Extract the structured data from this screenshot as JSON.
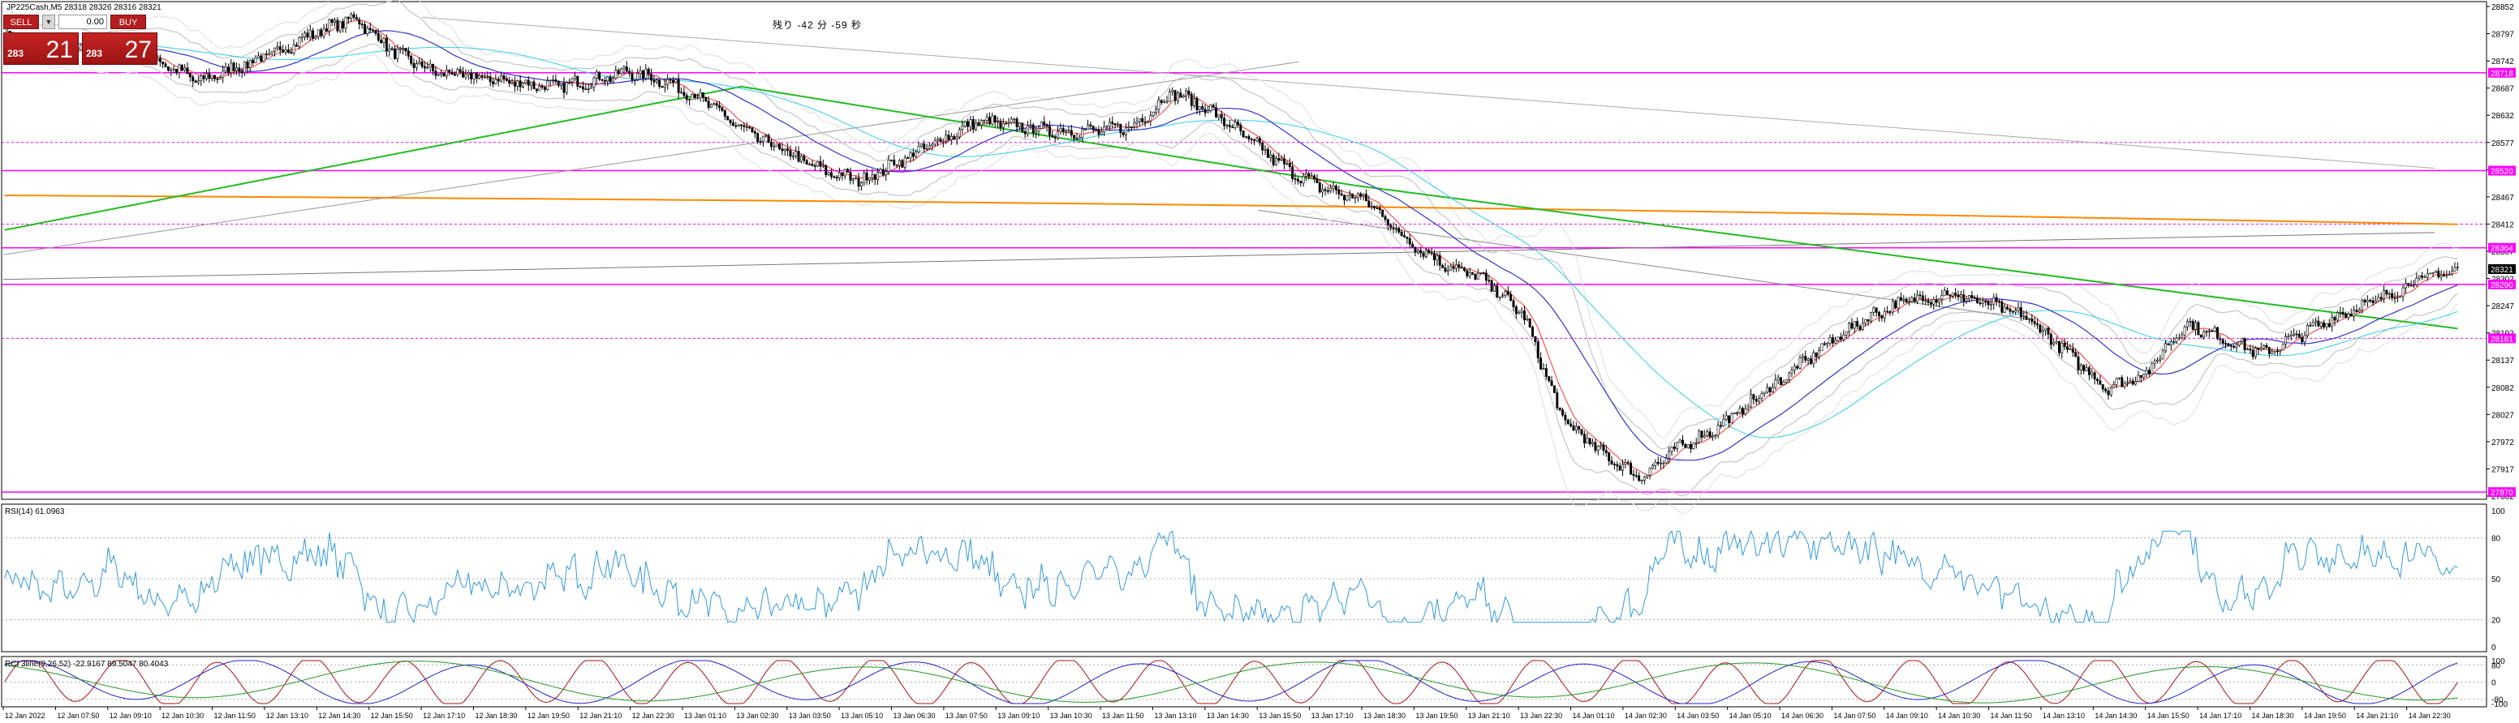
{
  "window": {
    "symbol_info": "JP225Cash,M5  28318 28326 28316 28321",
    "countdown": "残り -42 分 -59 秒"
  },
  "trade_panel": {
    "sell_label": "SELL",
    "buy_label": "BUY",
    "volume": "0.00",
    "sell_price_prefix": "283",
    "sell_price_big": "21",
    "buy_price_prefix": "283",
    "buy_price_big": "27"
  },
  "indicators": {
    "rsi_label": "RSI(14) 61.0963",
    "rci_label": "RCI 3line(9,26,52) -22.9167 89.5047 80.4043"
  },
  "price_axis": {
    "labels": [
      "28852",
      "28797",
      "28742",
      "28687",
      "28632",
      "28577",
      "28522",
      "28467",
      "28412",
      "28357",
      "28302",
      "28247",
      "28192",
      "28137",
      "28082",
      "28027",
      "27972",
      "27917",
      "27862"
    ],
    "range": [
      27862,
      28852
    ]
  },
  "price_tags": [
    {
      "value": "28718",
      "color": "#ff00ff"
    },
    {
      "value": "28520",
      "color": "#ff00ff"
    },
    {
      "value": "28364",
      "color": "#ff00ff"
    },
    {
      "value": "28321",
      "color": "#000000"
    },
    {
      "value": "28290",
      "color": "#ff00ff"
    },
    {
      "value": "28181",
      "color": "#ff00ff"
    },
    {
      "value": "27870",
      "color": "#ff00ff"
    }
  ],
  "rsi_axis": {
    "labels": [
      "100",
      "80",
      "50",
      "20",
      "0"
    ]
  },
  "rci_axis": {
    "labels": [
      "100",
      "80",
      "0",
      "-80",
      "-100"
    ]
  },
  "time_axis": {
    "labels": [
      "12 Jan 2022",
      "12 Jan 07:50",
      "12 Jan 09:10",
      "12 Jan 10:30",
      "12 Jan 11:50",
      "12 Jan 13:10",
      "12 Jan 14:30",
      "12 Jan 15:50",
      "12 Jan 17:10",
      "12 Jan 18:30",
      "12 Jan 19:50",
      "12 Jan 21:10",
      "12 Jan 22:30",
      "13 Jan 01:10",
      "13 Jan 02:30",
      "13 Jan 03:50",
      "13 Jan 05:10",
      "13 Jan 06:30",
      "13 Jan 07:50",
      "13 Jan 09:10",
      "13 Jan 10:30",
      "13 Jan 11:50",
      "13 Jan 13:10",
      "13 Jan 14:30",
      "13 Jan 15:50",
      "13 Jan 17:10",
      "13 Jan 18:30",
      "13 Jan 19:50",
      "13 Jan 21:10",
      "13 Jan 22:30",
      "14 Jan 01:10",
      "14 Jan 02:30",
      "14 Jan 03:50",
      "14 Jan 05:10",
      "14 Jan 06:30",
      "14 Jan 07:50",
      "14 Jan 09:10",
      "14 Jan 10:30",
      "14 Jan 11:50",
      "14 Jan 13:10",
      "14 Jan 14:30",
      "14 Jan 15:50",
      "14 Jan 17:10",
      "14 Jan 18:30",
      "14 Jan 19:50",
      "14 Jan 21:10",
      "14 Jan 22:30"
    ]
  },
  "colors": {
    "bull_candle": "#000000",
    "sma_short": "#ff3333",
    "sma_mid": "#3333cc",
    "sma_long": "#33ccee",
    "sma_200": "#22bb22",
    "sma_orange": "#ff8800",
    "bollinger": "#bbbbbb",
    "level_line": "#ff00ff",
    "rsi_line": "#3399dd",
    "rci_short": "#aa1111",
    "rci_mid": "#2222cc",
    "rci_long": "#229922"
  },
  "price_path_keypoints": [
    28790,
    28775,
    28760,
    28780,
    28740,
    28700,
    28730,
    28760,
    28800,
    28830,
    28760,
    28720,
    28710,
    28700,
    28690,
    28700,
    28720,
    28700,
    28660,
    28600,
    28560,
    28520,
    28500,
    28540,
    28580,
    28620,
    28610,
    28600,
    28600,
    28610,
    28680,
    28640,
    28580,
    28520,
    28480,
    28460,
    28380,
    28330,
    28300,
    28230,
    28020,
    27950,
    27900,
    27960,
    28000,
    28060,
    28120,
    28180,
    28230,
    28260,
    28270,
    28250,
    28220,
    28150,
    28080,
    28110,
    28210,
    28180,
    28150,
    28190,
    28230,
    28260,
    28300,
    28320
  ]
}
